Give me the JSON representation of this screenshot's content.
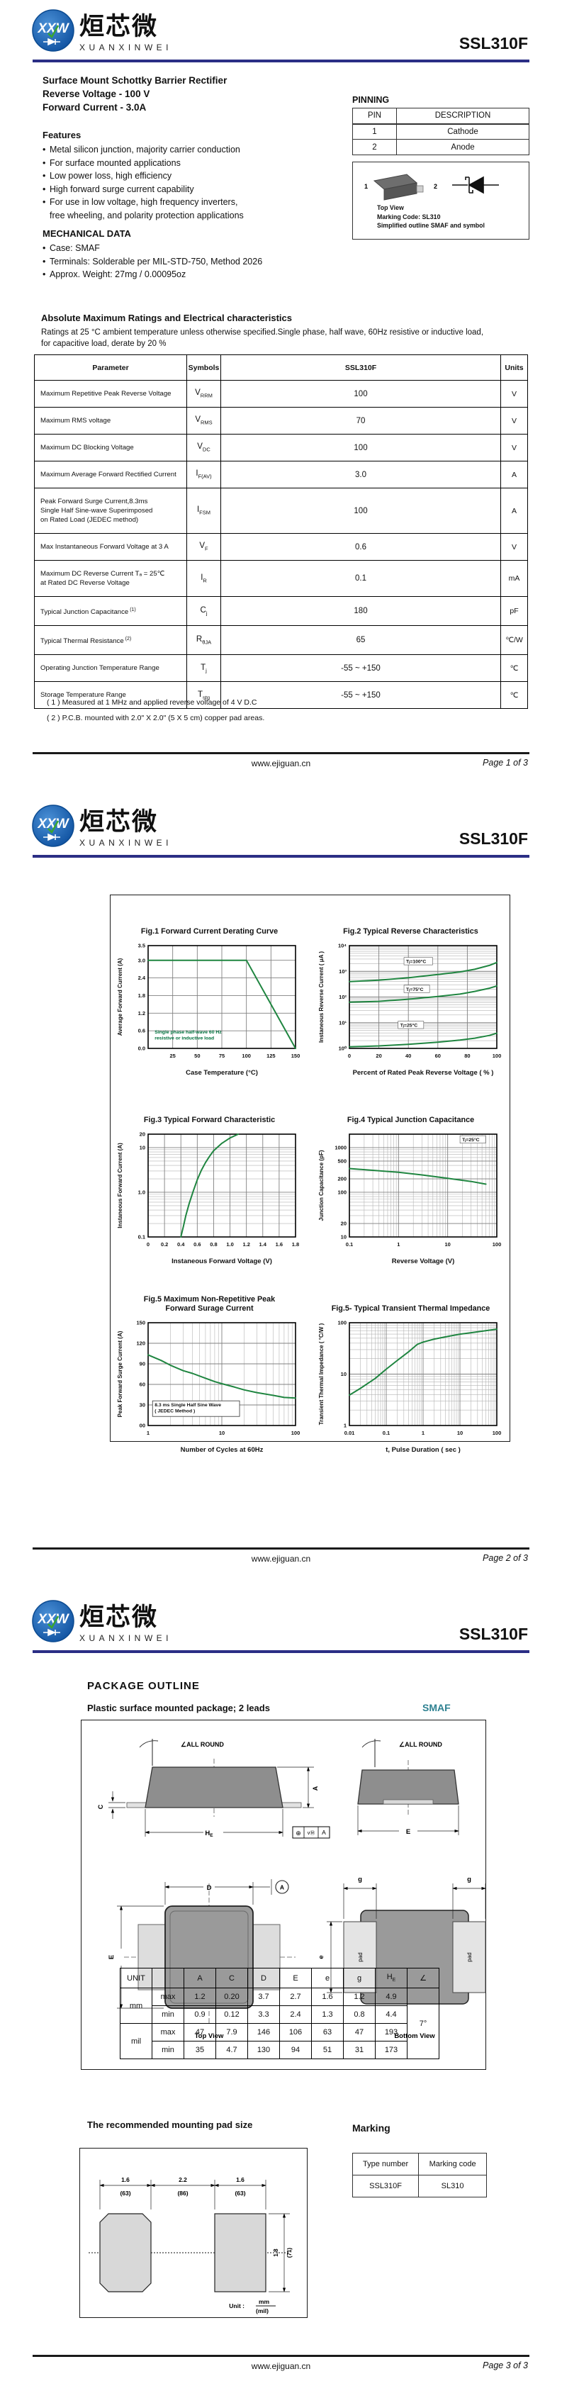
{
  "brand": {
    "logo_abbr": "XXW",
    "logo_text_cn": "烜芯微",
    "logo_text_en": "XUANXINWEI",
    "part_number": "SSL310F",
    "accent_color": "#2b2e85",
    "curve_color": "#1f8540"
  },
  "footer": {
    "website": "www.ejiguan.cn",
    "pages": [
      "Page 1 of 3",
      "Page 2 of 3",
      "Page 3 of 3"
    ]
  },
  "page1": {
    "title_lines": [
      "Surface Mount Schottky Barrier Rectifier",
      "Reverse Voltage - 100 V",
      "Forward Current - 3.0A"
    ],
    "features": {
      "heading": "Features",
      "items": [
        "Metal silicon junction, majority carrier conduction",
        "For surface mounted applications",
        "Low power loss, high efficiency",
        "High forward surge current capability",
        "For use in low voltage, high frequency inverters,"
      ],
      "continuation": "free wheeling, and polarity protection applications"
    },
    "mechanical": {
      "heading": "MECHANICAL DATA",
      "items": [
        "Case: SMAF",
        "Terminals: Solderable per MIL-STD-750, Method 2026",
        "Approx. Weight: 27mg  /  0.00095oz"
      ]
    },
    "pinning": {
      "heading": "PINNING",
      "columns": [
        "PIN",
        "DESCRIPTION"
      ],
      "rows": [
        [
          "1",
          "Cathode"
        ],
        [
          "2",
          "Anode"
        ]
      ],
      "pin1_label": "1",
      "pin2_label": "2",
      "pkg_caption": [
        "Top View",
        "Marking Code: SL310",
        "Simplified outline SMAF and symbol"
      ]
    },
    "ratings": {
      "heading": "Absolute Maximum Ratings and Electrical characteristics",
      "condition_lines": [
        "Ratings at 25 °C ambient temperature unless otherwise specified.Single phase, half wave, 60Hz resistive or inductive load,",
        "for capacitive load, derate by 20 %"
      ],
      "columns": [
        "Parameter",
        "Symbols",
        "SSL310F",
        "Units"
      ],
      "rows": [
        {
          "param": [
            "Maximum Repetitive Peak Reverse Voltage"
          ],
          "sym": "V",
          "sub": "RRM",
          "value": "100",
          "unit": "V"
        },
        {
          "param": [
            "Maximum RMS voltage"
          ],
          "sym": "V",
          "sub": "RMS",
          "value": "70",
          "unit": "V"
        },
        {
          "param": [
            "Maximum DC Blocking Voltage"
          ],
          "sym": "V",
          "sub": "DC",
          "value": "100",
          "unit": "V"
        },
        {
          "param": [
            "Maximum Average Forward Rectified Current"
          ],
          "sym": "I",
          "sub": "F(AV)",
          "value": "3.0",
          "unit": "A"
        },
        {
          "param": [
            "Peak Forward Surge Current,8.3ms",
            "Single Half Sine-wave Superimposed",
            "on Rated Load (JEDEC method)"
          ],
          "sym": "I",
          "sub": "FSM",
          "value": "100",
          "unit": "A"
        },
        {
          "param": [
            "Max Instantaneous Forward Voltage at 3 A"
          ],
          "sym": "V",
          "sub": "F",
          "value": "0.6",
          "unit": "V"
        },
        {
          "param": [
            "Maximum DC Reverse Current   Tₐ = 25℃",
            "at Rated DC Reverse Voltage"
          ],
          "sym": "I",
          "sub": "R",
          "value": "0.1",
          "unit": "mA"
        },
        {
          "param": [
            "Typical Junction Capacitance"
          ],
          "param_sup": "(1)",
          "sym": "C",
          "sub": "j",
          "value": "180",
          "unit": "pF"
        },
        {
          "param": [
            "Typical Thermal Resistance"
          ],
          "param_sup": "(2)",
          "sym": "R",
          "sub": "θJA",
          "value": "65",
          "unit": "℃/W"
        },
        {
          "param": [
            "Operating Junction Temperature Range"
          ],
          "sym": "T",
          "sub": "j",
          "value": "-55 ~ +150",
          "unit": "℃"
        },
        {
          "param": [
            "Storage Temperature Range"
          ],
          "sym": "T",
          "sub": "stg",
          "value": "-55 ~ +150",
          "unit": "℃"
        }
      ],
      "notes": [
        "( 1 ) Measured at 1 MHz and applied reverse voltage of 4 V D.C",
        "( 2 ) P.C.B. mounted with 2.0\" X 2.0\" (5 X 5 cm) copper pad areas."
      ]
    }
  },
  "chart_data": [
    {
      "id": "fig1",
      "type": "line",
      "title": "Fig.1  Forward Current Derating Curve",
      "xlabel": "Case Temperature (°C)",
      "ylabel": "Average Forward Current  (A)",
      "xscale": "linear",
      "yscale": "linear",
      "xlim": [
        0,
        150
      ],
      "ylim": [
        0,
        3.5
      ],
      "xticks": [
        25,
        50,
        75,
        100,
        125,
        150
      ],
      "yticks": [
        0,
        0.6,
        1.2,
        1.8,
        2.4,
        3.0,
        3.5
      ],
      "ytick_labels": [
        "0.0",
        "0.6",
        "1.2",
        "1.8",
        "2.4",
        "3.0",
        "3.5"
      ],
      "grid": true,
      "note": {
        "lines": [
          "Single phase half-wave 60 Hz",
          "resistive or inductive load"
        ],
        "fx": 0.03,
        "fy": 0.8,
        "color": "#00703c",
        "boxed": false
      },
      "series": [
        {
          "name": "derating",
          "points": [
            [
              0,
              3.0
            ],
            [
              100,
              3.0
            ],
            [
              150,
              0
            ]
          ]
        }
      ]
    },
    {
      "id": "fig2",
      "type": "line",
      "title": "Fig.2  Typical Reverse Characteristics",
      "xlabel": "Percent of Rated Peak Reverse Voltage ( % )",
      "ylabel": "Instaneous Reverse Current ( μA )",
      "xscale": "linear",
      "yscale": "log",
      "xlim": [
        0,
        100
      ],
      "ylim": [
        1,
        10000
      ],
      "xticks": [
        0,
        20,
        40,
        60,
        80,
        100
      ],
      "yticks": [
        1,
        10,
        100,
        1000,
        10000
      ],
      "ytick_labels": [
        "10⁰",
        "10¹",
        "10²",
        "10³",
        "10⁴"
      ],
      "grid": true,
      "annotations": [
        {
          "text": "Tⱼ=100°C",
          "fx": 0.38,
          "fy": 0.17,
          "boxed": true
        },
        {
          "text": "Tⱼ=75°C",
          "fx": 0.38,
          "fy": 0.44,
          "boxed": true
        },
        {
          "text": "Tⱼ=25°C",
          "fx": 0.34,
          "fy": 0.79,
          "boxed": true
        }
      ],
      "series": [
        {
          "name": "Tj=100°C",
          "points": [
            [
              0,
              400
            ],
            [
              20,
              450
            ],
            [
              40,
              560
            ],
            [
              60,
              750
            ],
            [
              75,
              950
            ],
            [
              85,
              1200
            ],
            [
              95,
              1700
            ],
            [
              100,
              2200
            ]
          ]
        },
        {
          "name": "Tj=75°C",
          "points": [
            [
              0,
              63
            ],
            [
              20,
              68
            ],
            [
              40,
              82
            ],
            [
              60,
              105
            ],
            [
              75,
              130
            ],
            [
              85,
              165
            ],
            [
              95,
              220
            ],
            [
              100,
              270
            ]
          ]
        },
        {
          "name": "Tj=25°C",
          "points": [
            [
              0,
              1.15
            ],
            [
              20,
              1.25
            ],
            [
              40,
              1.45
            ],
            [
              60,
              1.75
            ],
            [
              75,
              2.1
            ],
            [
              85,
              2.5
            ],
            [
              95,
              3.2
            ],
            [
              100,
              3.9
            ]
          ]
        }
      ]
    },
    {
      "id": "fig3",
      "type": "line",
      "title": "Fig.3  Typical Forward Characteristic",
      "xlabel": "Instaneous Forward Voltage (V)",
      "ylabel": "Instaneous Forward Current (A)",
      "xscale": "linear",
      "yscale": "log",
      "xlim": [
        0,
        1.8
      ],
      "ylim": [
        0.1,
        20
      ],
      "xticks": [
        0,
        0.2,
        0.4,
        0.6,
        0.8,
        1.0,
        1.2,
        1.4,
        1.6,
        1.8
      ],
      "xtick_labels": [
        "0",
        "0.2",
        "0.4",
        "0.6",
        "0.8",
        "1.0",
        "1.2",
        "1.4",
        "1.6",
        "1.8"
      ],
      "yticks": [
        0.1,
        1.0,
        10,
        20
      ],
      "ytick_labels": [
        "0.1",
        "1.0",
        "10",
        "20"
      ],
      "grid": true,
      "series": [
        {
          "name": "VF",
          "points": [
            [
              0.4,
              0.1
            ],
            [
              0.43,
              0.17
            ],
            [
              0.46,
              0.3
            ],
            [
              0.5,
              0.55
            ],
            [
              0.55,
              1.05
            ],
            [
              0.6,
              1.9
            ],
            [
              0.65,
              3.1
            ],
            [
              0.7,
              4.6
            ],
            [
              0.75,
              6.4
            ],
            [
              0.8,
              8.5
            ],
            [
              0.9,
              12.5
            ],
            [
              1.0,
              16.5
            ],
            [
              1.1,
              20
            ]
          ]
        }
      ]
    },
    {
      "id": "fig4",
      "type": "line",
      "title": "Fig.4  Typical Junction Capacitance",
      "xlabel": "Reverse  Voltage (V)",
      "ylabel": "Junction Capacitance (pF)",
      "xscale": "log",
      "yscale": "log",
      "xlim": [
        0.1,
        100
      ],
      "ylim": [
        10,
        2000
      ],
      "xticks": [
        0.1,
        1,
        10,
        100
      ],
      "xtick_labels": [
        "0.1",
        "1",
        "10",
        "100"
      ],
      "yticks": [
        10,
        20,
        100,
        200,
        500,
        1000
      ],
      "ytick_labels": [
        "10",
        "20",
        "100",
        "200",
        "500",
        "1000"
      ],
      "grid": true,
      "annotations": [
        {
          "text": "Tⱼ=25°C",
          "fx": 0.76,
          "fy": 0.07,
          "boxed": true
        }
      ],
      "series": [
        {
          "name": "Cj",
          "points": [
            [
              0.1,
              340
            ],
            [
              0.3,
              310
            ],
            [
              1,
              280
            ],
            [
              3,
              245
            ],
            [
              10,
              205
            ],
            [
              30,
              175
            ],
            [
              60,
              152
            ]
          ]
        }
      ]
    },
    {
      "id": "fig5",
      "type": "line",
      "title": "Fig.5  Maximum Non-Repetitive Peak\nForward Surage Current",
      "xlabel": "Number of Cycles at 60Hz",
      "ylabel": "Peak Forward Surge Current (A)",
      "xscale": "log",
      "yscale": "linear",
      "xlim": [
        1,
        100
      ],
      "ylim": [
        0,
        150
      ],
      "xticks": [
        1,
        10,
        100
      ],
      "xtick_labels": [
        "1",
        "10",
        "100"
      ],
      "yticks": [
        0,
        30,
        60,
        90,
        120,
        150
      ],
      "ytick_labels": [
        "00",
        "30",
        "60",
        "90",
        "120",
        "150"
      ],
      "grid": true,
      "note": {
        "lines": [
          "8.3 ms Single Half Sine Wave",
          "( JEDEC Method )"
        ],
        "fx": 0.03,
        "fy": 0.76,
        "color": "#111111",
        "boxed": true
      },
      "series": [
        {
          "name": "surge",
          "points": [
            [
              1,
              103
            ],
            [
              1.5,
              95
            ],
            [
              2,
              88
            ],
            [
              3,
              80
            ],
            [
              4,
              76
            ],
            [
              6,
              69
            ],
            [
              8,
              64
            ],
            [
              10,
              61
            ],
            [
              15,
              56
            ],
            [
              20,
              52
            ],
            [
              30,
              48
            ],
            [
              50,
              44
            ],
            [
              70,
              41
            ],
            [
              100,
              40
            ]
          ]
        }
      ]
    },
    {
      "id": "fig6",
      "type": "line",
      "title": "Fig.5- Typical Transient Thermal Impedance",
      "xlabel": "t, Pulse Duration ( sec )",
      "ylabel": "Transient Thermal Impedance ( °C/W )",
      "xscale": "log",
      "yscale": "log",
      "xlim": [
        0.01,
        100
      ],
      "ylim": [
        1,
        100
      ],
      "xticks": [
        0.01,
        0.1,
        1,
        10,
        100
      ],
      "xtick_labels": [
        "0.01",
        "0.1",
        "1",
        "10",
        "100"
      ],
      "yticks": [
        1,
        10,
        100
      ],
      "ytick_labels": [
        "1",
        "10",
        "100"
      ],
      "grid": true,
      "series": [
        {
          "name": "Zth",
          "points": [
            [
              0.01,
              3.9
            ],
            [
              0.02,
              5.3
            ],
            [
              0.05,
              8.2
            ],
            [
              0.1,
              12.5
            ],
            [
              0.2,
              18.5
            ],
            [
              0.4,
              27
            ],
            [
              0.7,
              38
            ],
            [
              1,
              42
            ],
            [
              2,
              48
            ],
            [
              4,
              53
            ],
            [
              10,
              60
            ],
            [
              20,
              64
            ],
            [
              50,
              70
            ],
            [
              100,
              75
            ]
          ]
        }
      ]
    }
  ],
  "page3": {
    "package_outline": {
      "heading": "PACKAGE  OUTLINE",
      "subtitle": "Plastic surface mounted package; 2 leads",
      "case_name": "SMAF",
      "labels": {
        "all_round": "∠ALL ROUND",
        "top_view": "Top View",
        "bottom_view": "Bottom View",
        "pad": "pad",
        "A": "A",
        "C": "C",
        "D": "D",
        "E": "E",
        "e": "e",
        "g": "g",
        "H": "H",
        "HE_sub": "E",
        "datum": "A",
        "datum_cells": [
          "⊕",
          "vⓂ",
          "A"
        ]
      },
      "dim_table": {
        "header": [
          "UNIT",
          "",
          "A",
          "C",
          "D",
          "E",
          "e",
          "g",
          "HE",
          "∠"
        ],
        "limits": [
          "max",
          "min"
        ],
        "units": [
          "mm",
          "mil"
        ],
        "mm_max": [
          "1.2",
          "0.20",
          "3.7",
          "2.7",
          "1.6",
          "1.2",
          "4.9"
        ],
        "mm_min": [
          "0.9",
          "0.12",
          "3.3",
          "2.4",
          "1.3",
          "0.8",
          "4.4"
        ],
        "mil_max": [
          "47",
          "7.9",
          "146",
          "106",
          "63",
          "47",
          "193"
        ],
        "mil_min": [
          "35",
          "4.7",
          "130",
          "94",
          "51",
          "31",
          "173"
        ],
        "angle": "7°"
      }
    },
    "mounting_pad": {
      "heading": "The recommended mounting pad size",
      "dim_left_mm": "1.6",
      "dim_left_mil": "(63)",
      "dim_mid_mm": "2.2",
      "dim_mid_mil": "(86)",
      "dim_right_mm": "1.6",
      "dim_right_mil": "(63)",
      "dim_v_mm": "1.8",
      "dim_v_mil": "(71)",
      "unit_label": "Unit :",
      "unit_num": "mm",
      "unit_den": "(mil)"
    },
    "marking": {
      "heading": "Marking",
      "columns": [
        "Type number",
        "Marking code"
      ],
      "rows": [
        [
          "SSL310F",
          "SL310"
        ]
      ]
    }
  }
}
